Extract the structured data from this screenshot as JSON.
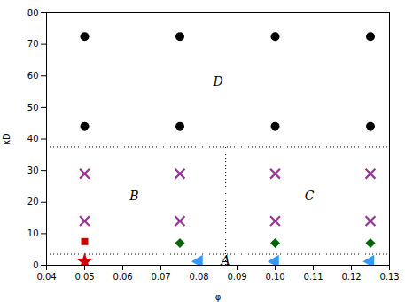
{
  "chart_data": {
    "type": "scatter",
    "xlabel": "φ",
    "ylabel": "κD",
    "xlim": [
      0.04,
      0.13
    ],
    "ylim": [
      0,
      80
    ],
    "xticks": [
      0.04,
      0.05,
      0.06,
      0.07,
      0.08,
      0.09,
      {
        "value": 0.1,
        "label": "0.10"
      },
      0.11,
      0.12,
      0.13
    ],
    "yticks": [
      0,
      10,
      20,
      30,
      40,
      50,
      60,
      70,
      80
    ],
    "series": [
      {
        "color": "#000000",
        "marker": "circle",
        "x": [
          0.05,
          0.075,
          0.1,
          0.125
        ],
        "values": [
          72.5,
          72.5,
          72.5,
          72.5
        ]
      },
      {
        "color": "#000000",
        "marker": "circle",
        "x": [
          0.05,
          0.075,
          0.1,
          0.125
        ],
        "values": [
          44,
          44,
          44,
          44
        ]
      },
      {
        "color": "#993399",
        "marker": "x",
        "x": [
          0.05,
          0.075,
          0.1,
          0.125
        ],
        "values": [
          29,
          29,
          29,
          29
        ]
      },
      {
        "color": "#993399",
        "marker": "x",
        "x": [
          0.05,
          0.075,
          0.1,
          0.125
        ],
        "values": [
          14,
          14,
          14,
          14
        ]
      },
      {
        "color": "#cc0000",
        "marker": "square",
        "x": [
          0.05
        ],
        "values": [
          7.5
        ]
      },
      {
        "color": "#cc0000",
        "marker": "star",
        "x": [
          0.05
        ],
        "values": [
          1.2
        ]
      },
      {
        "color": "#006600",
        "marker": "diamond",
        "x": [
          0.075,
          0.1,
          0.125
        ],
        "values": [
          7.0,
          7.0,
          7.0
        ]
      },
      {
        "color": "#3399ff",
        "marker": "triangle-left",
        "x": [
          0.08,
          0.1,
          0.125
        ],
        "values": [
          1.2,
          1.2,
          1.2
        ]
      }
    ],
    "reference_lines": [
      {
        "y": 37.5,
        "color": "#000000",
        "line_style": "dotted"
      },
      {
        "y": 3.5,
        "color": "#000000",
        "line_style": "dotted"
      },
      {
        "x": 0.087,
        "y": [
          0,
          37.5
        ],
        "color": "#000000",
        "line_style": "dotted"
      }
    ],
    "annotations": [
      {
        "text": "D",
        "x": 0.085,
        "y": 58
      },
      {
        "text": "B",
        "x": 0.063,
        "y": 22
      },
      {
        "text": "C",
        "x": 0.109,
        "y": 22
      },
      {
        "text": "A",
        "x": 0.087,
        "y": 1.3
      }
    ]
  }
}
